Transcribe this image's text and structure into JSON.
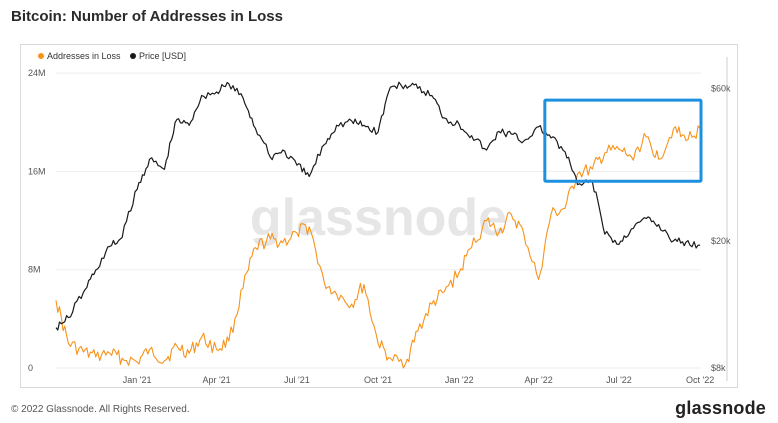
{
  "title": "Bitcoin: Number of Addresses in Loss",
  "footer": "© 2022 Glassnode. All Rights Reserved.",
  "brand": "glassnode",
  "watermark": "glassnode",
  "colors": {
    "addresses": "#f7931a",
    "price": "#1a1a1a",
    "highlight": "#1e90e0",
    "grid": "#eeeeee"
  },
  "chart_data": {
    "type": "line",
    "title": "Bitcoin: Number of Addresses in Loss",
    "legend_position": "top-left",
    "grid": true,
    "x_tick_labels": [
      "Jan '21",
      "Apr '21",
      "Jul '21",
      "Oct '21",
      "Jan '22",
      "Apr '22",
      "Jul '22",
      "Oct '22"
    ],
    "x_tick_dates": [
      "2021-01-01",
      "2021-04-01",
      "2021-07-01",
      "2021-10-01",
      "2022-01-01",
      "2022-04-01",
      "2022-07-01",
      "2022-10-01"
    ],
    "x_range": [
      "2020-10-01",
      "2022-10-02"
    ],
    "y_left": {
      "tick_labels": [
        "0",
        "8M",
        "16M",
        "24M"
      ],
      "ticks": [
        0,
        8000000,
        16000000,
        24000000
      ],
      "range": [
        0,
        24500000
      ]
    },
    "y_right": {
      "scale": "log",
      "tick_labels": [
        "$8k",
        "$20k",
        "$60k"
      ],
      "ticks": [
        8000,
        20000,
        60000
      ],
      "range": [
        8000,
        70000
      ]
    },
    "series": [
      {
        "name": "Addresses in Loss",
        "axis": "left",
        "color": "#f7931a",
        "x": [
          "2020-10-01",
          "2020-10-15",
          "2020-11-01",
          "2020-11-15",
          "2020-12-01",
          "2020-12-15",
          "2021-01-01",
          "2021-01-15",
          "2021-02-01",
          "2021-02-15",
          "2021-03-01",
          "2021-03-15",
          "2021-04-01",
          "2021-04-15",
          "2021-05-01",
          "2021-05-15",
          "2021-06-01",
          "2021-06-15",
          "2021-07-01",
          "2021-07-15",
          "2021-08-01",
          "2021-08-15",
          "2021-09-01",
          "2021-09-15",
          "2021-10-01",
          "2021-10-15",
          "2021-11-01",
          "2021-11-15",
          "2021-12-01",
          "2021-12-15",
          "2022-01-01",
          "2022-01-15",
          "2022-02-01",
          "2022-02-15",
          "2022-03-01",
          "2022-03-15",
          "2022-04-01",
          "2022-04-15",
          "2022-05-01",
          "2022-05-15",
          "2022-06-01",
          "2022-06-15",
          "2022-07-01",
          "2022-07-15",
          "2022-08-01",
          "2022-08-15",
          "2022-09-01",
          "2022-09-15",
          "2022-10-01"
        ],
        "values": [
          5500000,
          2000000,
          1300000,
          900000,
          1200000,
          800000,
          500000,
          1500000,
          600000,
          1800000,
          1200000,
          2500000,
          1500000,
          2200000,
          6500000,
          9800000,
          10500000,
          10200000,
          11000000,
          11500000,
          7000000,
          6000000,
          5200000,
          6800000,
          2000000,
          800000,
          300000,
          3000000,
          5200000,
          6200000,
          7800000,
          9800000,
          12000000,
          11000000,
          12500000,
          11000000,
          7200000,
          12500000,
          13000000,
          15800000,
          16200000,
          17500000,
          17800000,
          17200000,
          18800000,
          17000000,
          19500000,
          18500000,
          19500000
        ]
      },
      {
        "name": "Price [USD]",
        "axis": "right",
        "color": "#1a1a1a",
        "x": [
          "2020-10-01",
          "2020-10-15",
          "2020-11-01",
          "2020-11-15",
          "2020-12-01",
          "2020-12-15",
          "2021-01-01",
          "2021-01-15",
          "2021-02-01",
          "2021-02-15",
          "2021-03-01",
          "2021-03-15",
          "2021-04-01",
          "2021-04-15",
          "2021-05-01",
          "2021-05-15",
          "2021-06-01",
          "2021-06-15",
          "2021-07-01",
          "2021-07-15",
          "2021-08-01",
          "2021-08-15",
          "2021-09-01",
          "2021-09-15",
          "2021-10-01",
          "2021-10-15",
          "2021-11-01",
          "2021-11-15",
          "2021-12-01",
          "2021-12-15",
          "2022-01-01",
          "2022-01-15",
          "2022-02-01",
          "2022-02-15",
          "2022-03-01",
          "2022-03-15",
          "2022-04-01",
          "2022-04-15",
          "2022-05-01",
          "2022-05-15",
          "2022-06-01",
          "2022-06-15",
          "2022-07-01",
          "2022-07-15",
          "2022-08-01",
          "2022-08-15",
          "2022-09-01",
          "2022-09-15",
          "2022-10-01"
        ],
        "values": [
          10700,
          11500,
          13800,
          16200,
          19200,
          20500,
          29000,
          36000,
          33500,
          48000,
          46000,
          57000,
          58500,
          62000,
          56000,
          45000,
          36500,
          38500,
          34500,
          31800,
          40000,
          46000,
          47500,
          46000,
          43800,
          60500,
          61500,
          60000,
          57000,
          48500,
          46300,
          42700,
          38500,
          44000,
          43200,
          41000,
          45500,
          42000,
          38000,
          30000,
          30500,
          21000,
          19500,
          21800,
          23500,
          22500,
          20000,
          19800,
          19400
        ]
      }
    ]
  },
  "highlight_box": {
    "x_start": "2022-04-08",
    "x_end": "2022-10-02",
    "y_low": 15200000,
    "y_high": 21800000
  }
}
